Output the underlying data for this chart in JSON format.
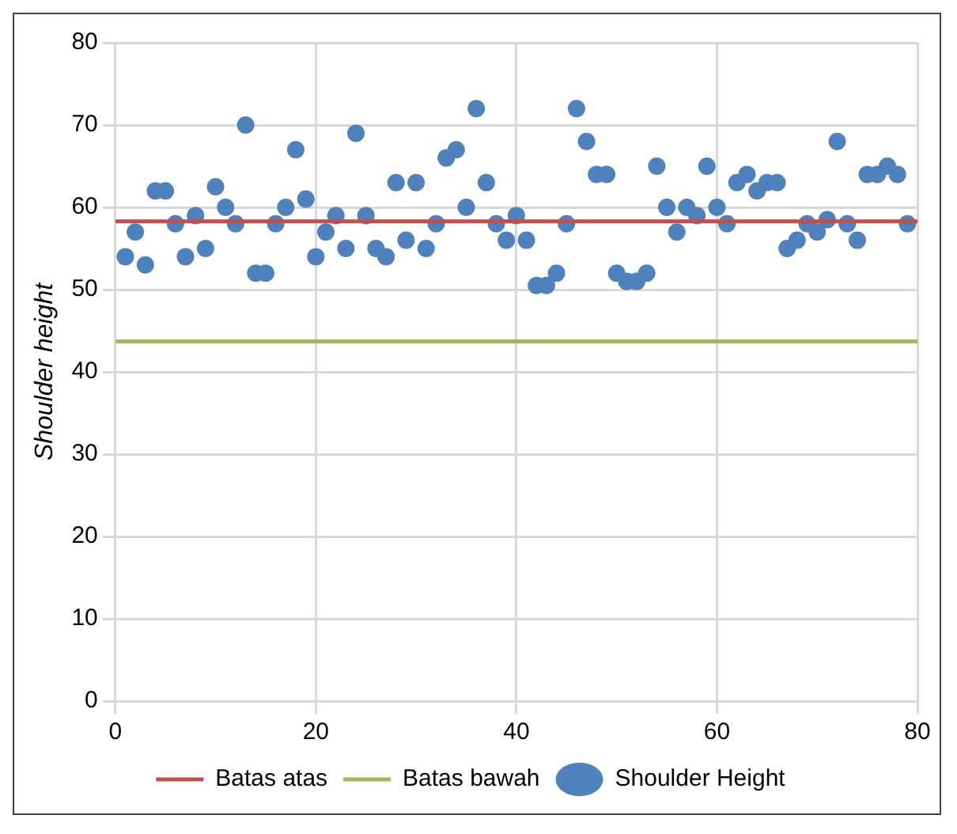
{
  "chart_data": {
    "type": "scatter",
    "ylabel": "Shoulder height",
    "xlim": [
      0,
      80
    ],
    "xticks": [
      0,
      20,
      40,
      60,
      80
    ],
    "ylim": [
      0,
      80
    ],
    "yticks": [
      0,
      10,
      20,
      30,
      40,
      50,
      60,
      70,
      80
    ],
    "grid": true,
    "legend": "bottom",
    "marker": "circle",
    "series": [
      {
        "name": "Batas atas",
        "type": "line",
        "color": "#c0504d",
        "x": [
          0,
          80
        ],
        "values": [
          58.3,
          58.3
        ],
        "marker": "none"
      },
      {
        "name": "Batas bawah",
        "type": "line",
        "color": "#9bbb59",
        "x": [
          0,
          80
        ],
        "values": [
          43.7,
          43.7
        ],
        "marker": "none"
      },
      {
        "name": "Shoulder Height",
        "type": "scatter",
        "color": "#4f81bd",
        "x": [
          1,
          2,
          3,
          4,
          5,
          6,
          7,
          8,
          9,
          10,
          11,
          12,
          13,
          14,
          15,
          16,
          17,
          18,
          19,
          20,
          21,
          22,
          23,
          24,
          25,
          26,
          27,
          28,
          29,
          30,
          31,
          32,
          33,
          34,
          35,
          36,
          37,
          38,
          39,
          40,
          41,
          42,
          43,
          44,
          45,
          46,
          47,
          48,
          49,
          50,
          51,
          52,
          53,
          54,
          55,
          56,
          57,
          58,
          59,
          60,
          61,
          62,
          63,
          64,
          65,
          66,
          67,
          68,
          69,
          70,
          71,
          72,
          73,
          74,
          75,
          76,
          77,
          78,
          79
        ],
        "values": [
          54,
          57,
          53,
          62,
          62,
          58,
          54,
          59,
          55,
          62.5,
          60,
          58,
          70,
          52,
          52,
          58,
          60,
          67,
          61,
          54,
          57,
          59,
          55,
          69,
          59,
          55,
          54,
          63,
          56,
          63,
          55,
          58,
          66,
          67,
          60,
          72,
          63,
          58,
          56,
          59,
          56,
          50.5,
          50.5,
          52,
          58,
          72,
          68,
          64,
          64,
          52,
          51,
          51,
          52,
          65,
          60,
          57,
          60,
          59,
          65,
          60,
          58,
          63,
          64,
          62,
          63,
          63,
          55,
          56,
          58,
          57,
          58.5,
          68,
          58,
          56,
          64,
          64,
          65,
          64,
          58
        ]
      }
    ]
  }
}
